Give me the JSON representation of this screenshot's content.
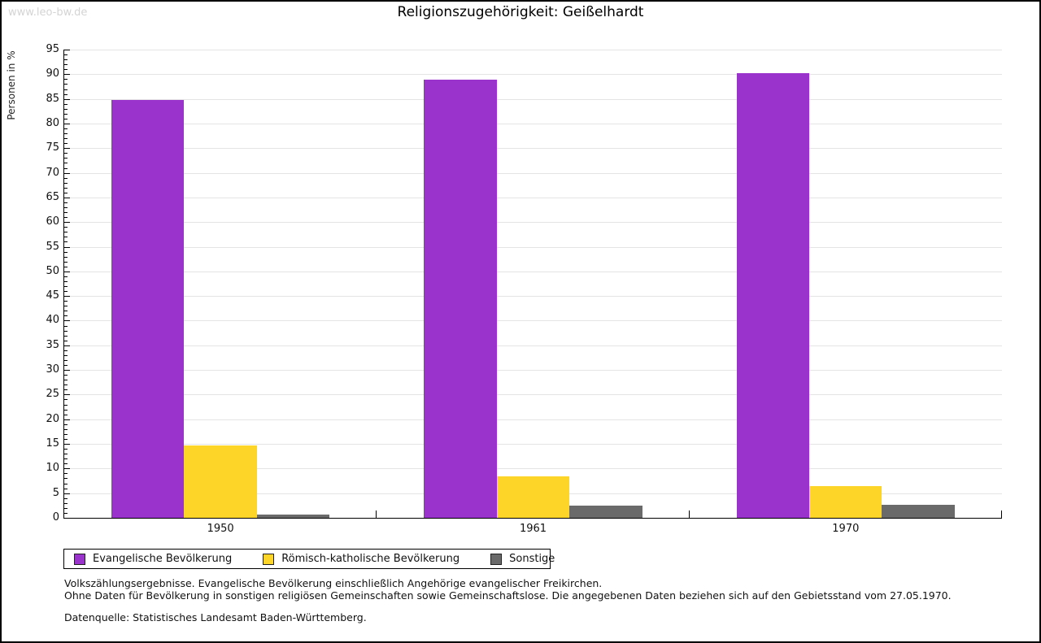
{
  "watermark": "www.leo-bw.de",
  "chart_data": {
    "type": "bar",
    "title": "Religionszugehörigkeit: Geißelhardt",
    "ylabel": "Personen in %",
    "xlabel": "",
    "categories": [
      "1950",
      "1961",
      "1970"
    ],
    "series": [
      {
        "name": "Evangelische Bevölkerung",
        "color": "#9933CC",
        "values": [
          84.7,
          88.9,
          90.3
        ]
      },
      {
        "name": "Römisch-katholische Bevölkerung",
        "color": "#FDD528",
        "values": [
          14.7,
          8.4,
          6.4
        ]
      },
      {
        "name": "Sonstige",
        "color": "#6A6A6A",
        "values": [
          0.6,
          2.4,
          2.6
        ]
      }
    ],
    "ylim": [
      0,
      95
    ],
    "y_major_step": 5,
    "y_minor_step": 1,
    "grid": true,
    "legend_position": "bottom"
  },
  "footnotes": {
    "line1": "Volkszählungsergebnisse. Evangelische Bevölkerung einschließlich Angehörige evangelischer Freikirchen.",
    "line2": "Ohne Daten für Bevölkerung in sonstigen religiösen Gemeinschaften sowie Gemeinschaftslose. Die angegebenen Daten beziehen sich auf den Gebietsstand vom 27.05.1970.",
    "source": "Datenquelle: Statistisches Landesamt Baden-Württemberg."
  },
  "colors": {
    "axis": "#000000",
    "grid": "#e4e4e4",
    "watermark": "#d4d4d4",
    "background": "#ffffff"
  }
}
